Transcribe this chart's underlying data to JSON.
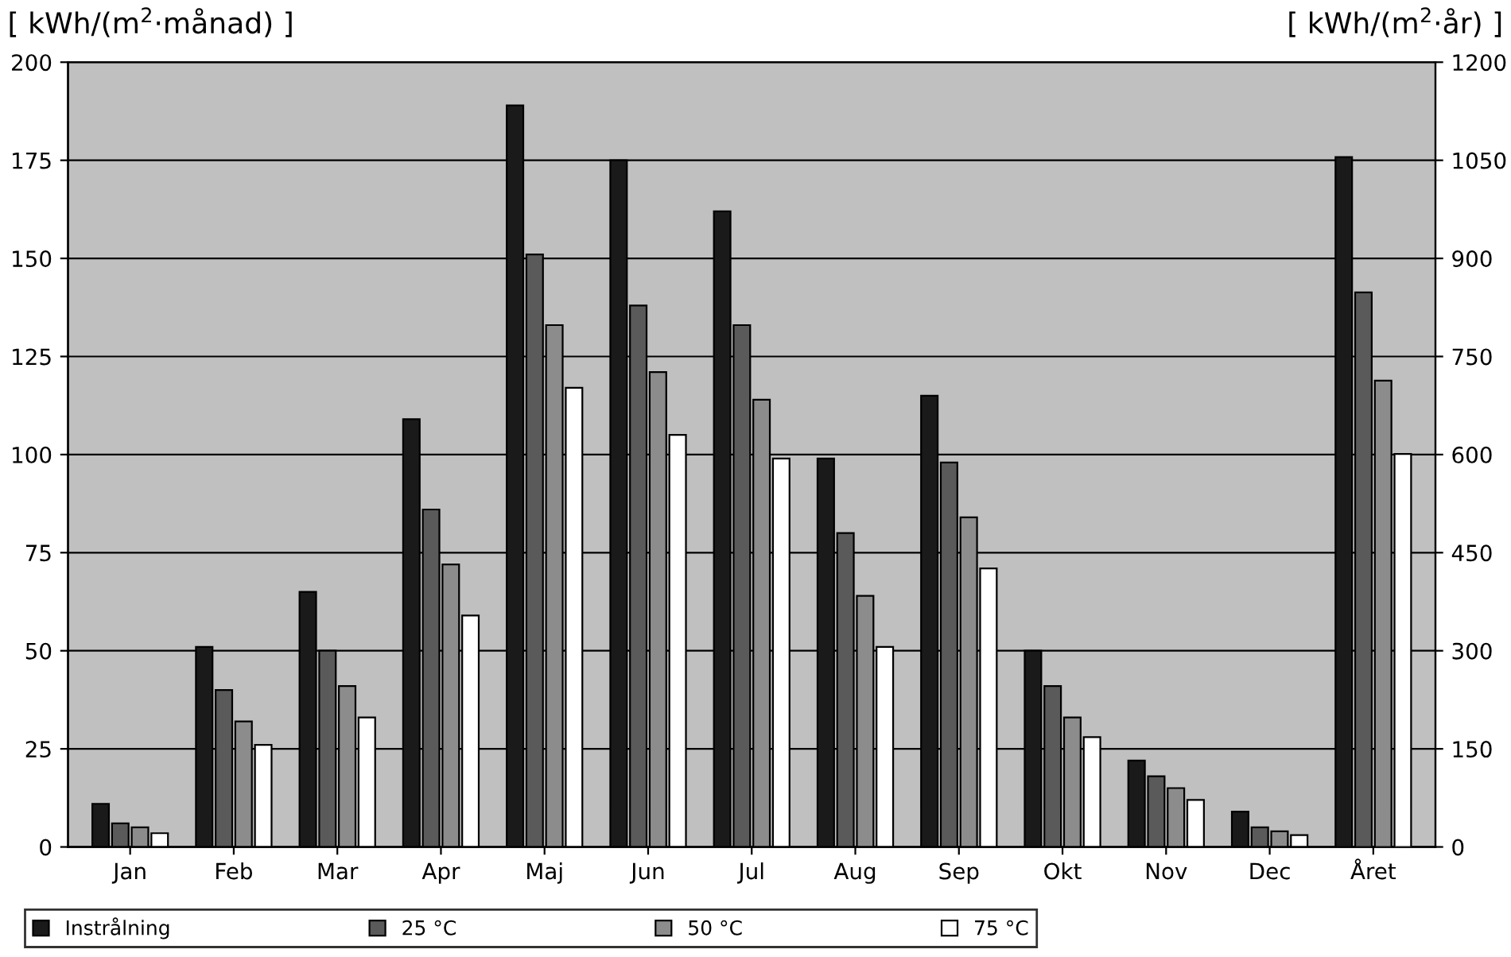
{
  "chart_data": {
    "type": "bar",
    "ylabel": "[ kWh/(m$^{2}$·månad) ]",
    "y2label": "[ kWh/(m$^{2}$·år) ]",
    "categories": [
      "Jan",
      "Feb",
      "Mar",
      "Apr",
      "Maj",
      "Jun",
      "Jul",
      "Aug",
      "Sep",
      "Okt",
      "Nov",
      "Dec",
      "Året"
    ],
    "series": [
      {
        "name": "Instrålning",
        "color": "#1a1a1a",
        "values": [
          11,
          51,
          65,
          109,
          189,
          175,
          162,
          99,
          115,
          50,
          22,
          9,
          null
        ]
      },
      {
        "name": "25 °C",
        "color": "#5a5a5a",
        "values": [
          6,
          40,
          50,
          86,
          151,
          138,
          133,
          80,
          98,
          41,
          18,
          5,
          null
        ]
      },
      {
        "name": "50 °C",
        "color": "#8c8c8c",
        "values": [
          5,
          32,
          41,
          72,
          133,
          121,
          114,
          64,
          84,
          33,
          15,
          4,
          null
        ]
      },
      {
        "name": "75 °C",
        "color": "#ffffff",
        "values": [
          3.5,
          26,
          33,
          59,
          117,
          105,
          99,
          51,
          71,
          28,
          12,
          3,
          null
        ]
      },
      {
        "color": "#1a1a1a",
        "axis": "y2",
        "values": [
          null,
          null,
          null,
          null,
          null,
          null,
          null,
          null,
          null,
          null,
          null,
          null,
          1055
        ]
      },
      {
        "color": "#5a5a5a",
        "axis": "y2",
        "values": [
          null,
          null,
          null,
          null,
          null,
          null,
          null,
          null,
          null,
          null,
          null,
          null,
          848
        ]
      },
      {
        "color": "#8c8c8c",
        "axis": "y2",
        "values": [
          null,
          null,
          null,
          null,
          null,
          null,
          null,
          null,
          null,
          null,
          null,
          null,
          713
        ]
      },
      {
        "color": "#ffffff",
        "axis": "y2",
        "values": [
          null,
          null,
          null,
          null,
          null,
          null,
          null,
          null,
          null,
          null,
          null,
          null,
          601
        ]
      }
    ],
    "ylim": [
      0,
      200
    ],
    "yticks": [
      0,
      25,
      50,
      75,
      100,
      125,
      150,
      175,
      200
    ],
    "y2lim": [
      0,
      1200
    ],
    "y2ticks": [
      0,
      150,
      300,
      450,
      600,
      750,
      900,
      1050,
      1200
    ],
    "grid": "y",
    "legend": "bottom"
  }
}
